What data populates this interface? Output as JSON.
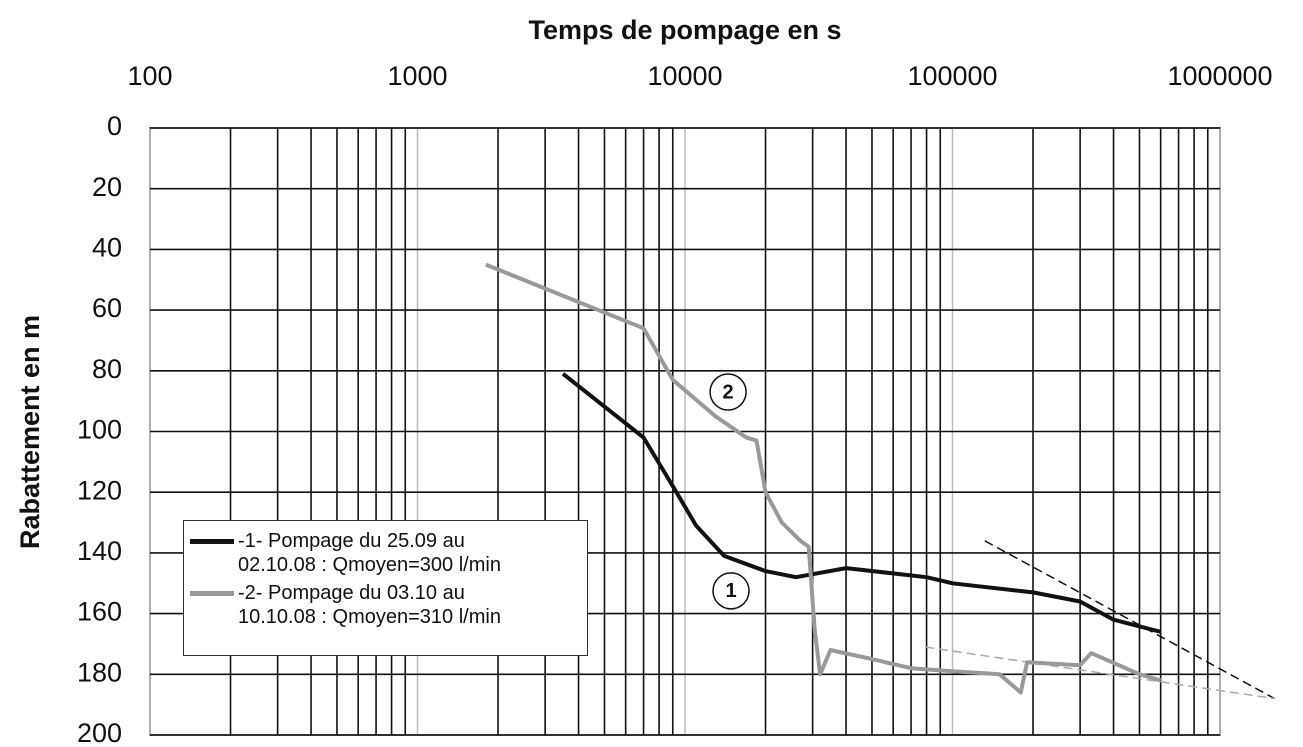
{
  "chart_data": {
    "type": "line",
    "title": "Temps de pompage en s",
    "ylabel": "Rabattement en m",
    "xscale": "log",
    "xaxis_position": "top",
    "yinverted": true,
    "grid": true,
    "xlim": [
      100,
      1000000
    ],
    "xticks": [
      100,
      1000,
      10000,
      100000,
      1000000
    ],
    "xminorticks": [
      200,
      300,
      400,
      500,
      600,
      700,
      800,
      900,
      2000,
      3000,
      4000,
      5000,
      6000,
      7000,
      8000,
      9000,
      20000,
      30000,
      40000,
      50000,
      60000,
      70000,
      80000,
      90000,
      200000,
      300000,
      400000,
      500000,
      600000,
      700000,
      800000,
      900000
    ],
    "ylim": [
      0,
      200
    ],
    "yticks": [
      0,
      20,
      40,
      60,
      80,
      100,
      120,
      140,
      160,
      180,
      200
    ],
    "series": [
      {
        "name": "-1- Pompage du 25.09 au 02.10.08 : Qmoyen=300 l/min",
        "color": "#111111",
        "x": [
          3500,
          7000,
          9000,
          11000,
          14000,
          20000,
          26000,
          40000,
          80000,
          100000,
          200000,
          300000,
          400000,
          600000
        ],
        "values": [
          81,
          102,
          118,
          131,
          141,
          146,
          148,
          145,
          148,
          150,
          153,
          156,
          162,
          166
        ]
      },
      {
        "name": "-2- Pompage du 03.10 au 10.10.08 : Qmoyen=310 l/min",
        "color": "#999999",
        "x": [
          1800,
          7000,
          9000,
          13000,
          17000,
          18500,
          20000,
          23000,
          27000,
          29000,
          30500,
          32000,
          35000,
          50000,
          70000,
          100000,
          150000,
          180000,
          190000,
          300000,
          330000,
          500000,
          600000
        ],
        "values": [
          45,
          66,
          83,
          95,
          102,
          103,
          120,
          130,
          136,
          138,
          165,
          180,
          172,
          175,
          178,
          179,
          180,
          186,
          176,
          177,
          173,
          180,
          182
        ]
      }
    ],
    "trend_lines": [
      {
        "color": "#111111",
        "x": [
          132000,
          1600000
        ],
        "values": [
          136,
          188
        ]
      },
      {
        "color": "#aaaaaa",
        "x": [
          79000,
          1600000
        ],
        "values": [
          171,
          188
        ]
      }
    ],
    "annotations": [
      {
        "text": "1",
        "x": 14860,
        "y": 152.5
      },
      {
        "text": "2",
        "x": 14490,
        "y": 87
      }
    ]
  }
}
